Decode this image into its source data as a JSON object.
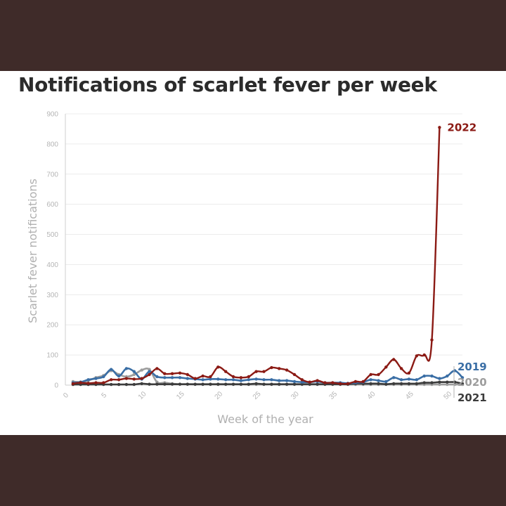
{
  "chart_data": {
    "type": "line",
    "title": "Notifications of scarlet fever per week",
    "xlabel": "Week of the year",
    "ylabel": "Scarlet fever notifications",
    "xlim": [
      0,
      52
    ],
    "ylim": [
      0,
      900
    ],
    "x_ticks": [
      "0",
      "5",
      "10",
      "15",
      "20",
      "25",
      "30",
      "35",
      "40",
      "45",
      "50"
    ],
    "y_ticks": [
      "0",
      "100",
      "200",
      "300",
      "400",
      "500",
      "600",
      "700",
      "800",
      "900"
    ],
    "grid": true,
    "legend": "labels at line ends (right)",
    "series": [
      {
        "name": "2022",
        "color": "#8b1a14",
        "x": [
          1,
          2,
          3,
          4,
          5,
          6,
          7,
          8,
          9,
          10,
          11,
          12,
          13,
          14,
          15,
          16,
          17,
          18,
          19,
          20,
          21,
          22,
          23,
          24,
          25,
          26,
          27,
          28,
          29,
          30,
          31,
          32,
          33,
          34,
          35,
          36,
          37,
          38,
          39,
          40,
          41,
          42,
          43,
          44,
          45,
          46,
          47,
          48,
          49
        ],
        "values": [
          5,
          8,
          6,
          8,
          8,
          18,
          18,
          22,
          20,
          22,
          35,
          55,
          38,
          38,
          40,
          35,
          22,
          30,
          28,
          60,
          45,
          28,
          25,
          28,
          45,
          45,
          58,
          55,
          50,
          35,
          18,
          10,
          15,
          8,
          8,
          5,
          5,
          12,
          12,
          35,
          35,
          60,
          85,
          55,
          40,
          97,
          100,
          150,
          855
        ]
      },
      {
        "name": "2019",
        "color": "#3a6ea5",
        "x": [
          1,
          2,
          3,
          4,
          5,
          6,
          7,
          8,
          9,
          10,
          11,
          12,
          13,
          14,
          15,
          16,
          17,
          18,
          19,
          20,
          21,
          22,
          23,
          24,
          25,
          26,
          27,
          28,
          29,
          30,
          31,
          32,
          33,
          34,
          35,
          36,
          37,
          38,
          39,
          40,
          41,
          42,
          43,
          44,
          45,
          46,
          47,
          48,
          49,
          50,
          51,
          52
        ],
        "values": [
          8,
          10,
          18,
          22,
          28,
          52,
          30,
          55,
          45,
          20,
          45,
          28,
          25,
          25,
          25,
          22,
          20,
          18,
          20,
          20,
          18,
          18,
          15,
          18,
          20,
          18,
          18,
          15,
          15,
          12,
          10,
          10,
          12,
          8,
          8,
          8,
          6,
          8,
          10,
          18,
          15,
          12,
          25,
          18,
          20,
          18,
          30,
          30,
          22,
          30,
          48,
          25
        ]
      },
      {
        "name": "2020",
        "color": "#9d9d9d",
        "x": [
          1,
          2,
          3,
          4,
          5,
          6,
          7,
          8,
          9,
          10,
          11,
          12,
          13,
          14,
          15,
          16,
          17,
          18,
          19,
          20,
          21,
          22,
          23,
          24,
          25,
          26,
          27,
          28,
          29,
          30,
          31,
          32,
          33,
          34,
          35,
          36,
          37,
          38,
          39,
          40,
          41,
          42,
          43,
          44,
          45,
          46,
          47,
          48,
          49,
          50,
          51,
          52
        ],
        "values": [
          12,
          10,
          15,
          25,
          32,
          48,
          35,
          28,
          35,
          50,
          52,
          10,
          8,
          5,
          3,
          3,
          2,
          2,
          2,
          2,
          2,
          2,
          2,
          2,
          2,
          2,
          2,
          2,
          2,
          2,
          2,
          2,
          2,
          2,
          2,
          2,
          2,
          2,
          2,
          2,
          2,
          2,
          2,
          2,
          2,
          2,
          2,
          2,
          2,
          2,
          2,
          2
        ]
      },
      {
        "name": "2021",
        "color": "#3c3c3c",
        "x": [
          1,
          2,
          3,
          4,
          5,
          6,
          7,
          8,
          9,
          10,
          11,
          12,
          13,
          14,
          15,
          16,
          17,
          18,
          19,
          20,
          21,
          22,
          23,
          24,
          25,
          26,
          27,
          28,
          29,
          30,
          31,
          32,
          33,
          34,
          35,
          36,
          37,
          38,
          39,
          40,
          41,
          42,
          43,
          44,
          45,
          46,
          47,
          48,
          49,
          50,
          51,
          52
        ],
        "values": [
          2,
          2,
          2,
          2,
          2,
          2,
          2,
          2,
          2,
          5,
          3,
          3,
          3,
          3,
          3,
          3,
          3,
          3,
          3,
          3,
          3,
          3,
          3,
          3,
          5,
          3,
          3,
          3,
          3,
          3,
          3,
          3,
          3,
          3,
          3,
          3,
          3,
          5,
          5,
          5,
          5,
          3,
          5,
          5,
          5,
          5,
          8,
          8,
          10,
          10,
          10,
          5
        ]
      }
    ]
  }
}
